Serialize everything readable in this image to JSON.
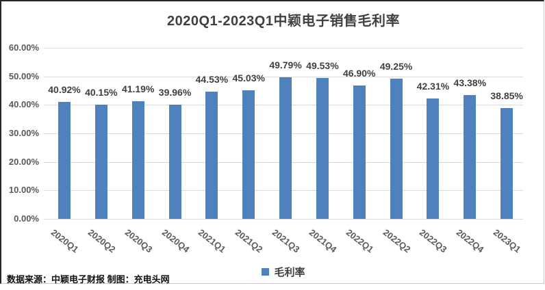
{
  "chart_data": {
    "type": "bar",
    "title": "2020Q1-2023Q1中颖电子销售毛利率",
    "categories": [
      "2020Q1",
      "2020Q2",
      "2020Q3",
      "2020Q4",
      "2021Q1",
      "2021Q2",
      "2021Q3",
      "2021Q4",
      "2022Q1",
      "2022Q2",
      "2022Q3",
      "2022Q4",
      "2023Q1"
    ],
    "series": [
      {
        "name": "毛利率",
        "values": [
          40.92,
          40.15,
          41.19,
          39.96,
          44.53,
          45.03,
          49.79,
          49.53,
          46.9,
          49.25,
          42.31,
          43.38,
          38.85
        ]
      }
    ],
    "data_labels": [
      "40.92%",
      "40.15%",
      "41.19%",
      "39.96%",
      "44.53%",
      "45.03%",
      "49.79%",
      "49.53%",
      "46.90%",
      "49.25%",
      "42.31%",
      "43.38%",
      "38.85%"
    ],
    "y_tick_labels": [
      "60.00%",
      "50.00%",
      "40.00%",
      "30.00%",
      "20.00%",
      "10.00%",
      "0.00%"
    ],
    "ylim": [
      0,
      60
    ],
    "grid": true,
    "legend_position": "bottom",
    "xlabel": "",
    "ylabel": "",
    "colors": {
      "bar": "#4f81bd",
      "gridline": "#d9d9d9",
      "title_text": "#404040",
      "tick_text": "#595959"
    }
  },
  "legend": {
    "label": "毛利率"
  },
  "footer": {
    "source_note": "数据来源：中颖电子财报 制图：充电头网"
  }
}
